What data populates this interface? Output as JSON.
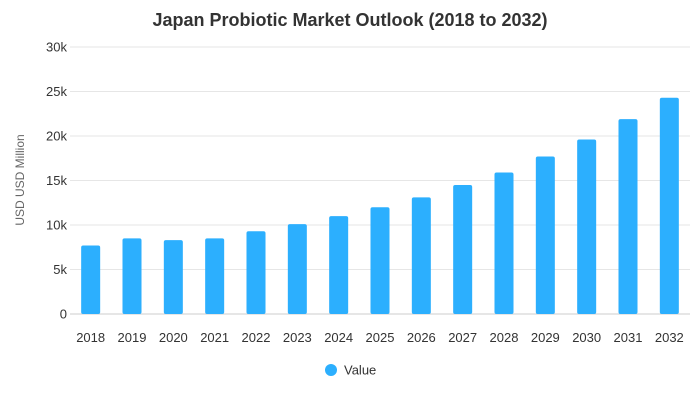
{
  "chart_data": {
    "type": "bar",
    "title": "Japan Probiotic Market Outlook (2018 to 2032)",
    "xlabel": "",
    "ylabel": "USD USD Million",
    "categories": [
      "2018",
      "2019",
      "2020",
      "2021",
      "2022",
      "2023",
      "2024",
      "2025",
      "2026",
      "2027",
      "2028",
      "2029",
      "2030",
      "2031",
      "2032"
    ],
    "series": [
      {
        "name": "Value",
        "values": [
          7700,
          8500,
          8300,
          8500,
          9300,
          10100,
          11000,
          12000,
          13100,
          14500,
          15900,
          17700,
          19600,
          21900,
          24300
        ]
      }
    ],
    "ylim": [
      0,
      30000
    ],
    "yticks": [
      0,
      5000,
      10000,
      15000,
      20000,
      25000,
      30000
    ],
    "ytick_labels": [
      "0",
      "5k",
      "10k",
      "15k",
      "20k",
      "25k",
      "30k"
    ],
    "grid": true,
    "legend_position": "bottom-center",
    "colors": {
      "bar": "#2caffe"
    }
  }
}
